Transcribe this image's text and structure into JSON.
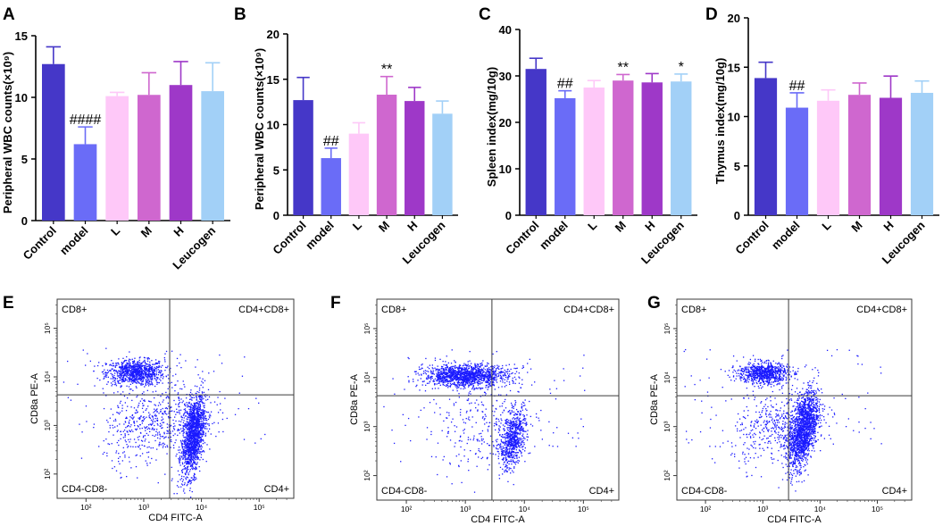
{
  "figure": {
    "colors": {
      "Control": "#4537c8",
      "model": "#6a6cf7",
      "L": "#fec8f8",
      "M": "#cf67cf",
      "H": "#9e38c8",
      "Leucogen": "#a2d0f7",
      "dot": "#1a1aff",
      "axis": "#000000",
      "gate": "#3a3a3a"
    }
  },
  "chart_data": [
    {
      "panel": "A",
      "type": "bar",
      "ylabel": "Peripheral WBC counts(×10⁹)",
      "ylim": [
        0,
        15
      ],
      "yticks": [
        0,
        5,
        10,
        15
      ],
      "categories": [
        "Control",
        "model",
        "L",
        "M",
        "H",
        "Leucogen"
      ],
      "values": [
        12.7,
        6.2,
        10.1,
        10.2,
        11.0,
        10.5
      ],
      "errors": [
        1.4,
        1.4,
        0.3,
        1.8,
        1.9,
        2.3
      ],
      "annotations": [
        "",
        "####",
        "",
        "",
        "",
        ""
      ]
    },
    {
      "panel": "B",
      "type": "bar",
      "ylabel": "Peripheral WBC counts(×10⁹)",
      "ylim": [
        0,
        20
      ],
      "yticks": [
        0,
        5,
        10,
        15,
        20
      ],
      "categories": [
        "Control",
        "model",
        "L",
        "M",
        "H",
        "Leucogen"
      ],
      "values": [
        12.7,
        6.3,
        9.0,
        13.3,
        12.6,
        11.2
      ],
      "errors": [
        2.5,
        1.1,
        1.2,
        2.0,
        1.5,
        1.4
      ],
      "annotations": [
        "",
        "##",
        "",
        "**",
        "",
        ""
      ]
    },
    {
      "panel": "C",
      "type": "bar",
      "ylabel": "Spleen index(mg/10g)",
      "ylim": [
        0,
        40
      ],
      "yticks": [
        0,
        10,
        20,
        30,
        40
      ],
      "categories": [
        "Control",
        "model",
        "L",
        "M",
        "H",
        "Leucogen"
      ],
      "values": [
        31.5,
        25.2,
        27.5,
        29.0,
        28.6,
        28.8
      ],
      "errors": [
        2.3,
        1.6,
        1.5,
        1.3,
        1.9,
        1.6
      ],
      "annotations": [
        "",
        "##",
        "",
        "**",
        "",
        "*"
      ]
    },
    {
      "panel": "D",
      "type": "bar",
      "ylabel": "Thymus index(mg/10g)",
      "ylim": [
        0,
        20
      ],
      "yticks": [
        0,
        5,
        10,
        15,
        20
      ],
      "categories": [
        "Control",
        "model",
        "L",
        "M",
        "H",
        "Leucogen"
      ],
      "values": [
        13.9,
        10.9,
        11.6,
        12.2,
        11.9,
        12.4
      ],
      "errors": [
        1.6,
        1.5,
        1.1,
        1.2,
        2.2,
        1.2
      ],
      "annotations": [
        "",
        "##",
        "",
        "",
        "",
        ""
      ]
    },
    {
      "panel": "E",
      "type": "scatter",
      "xlabel": "CD4 FITC-A",
      "ylabel": "CD8a PE-A",
      "xticks": [
        "10²",
        "10³",
        "10⁴",
        "10⁵"
      ],
      "yticks": [
        "10²",
        "10³",
        "10⁴",
        "10⁵"
      ],
      "quadrants": {
        "ul": "CD8+",
        "ur": "CD4+CD8+",
        "ll": "CD4-CD8-",
        "lr": "CD4+"
      },
      "populations": [
        {
          "x": 2.85,
          "y": 4.1,
          "sx": 0.25,
          "sy": 0.13,
          "n": 900,
          "rho": 0
        },
        {
          "x": 3.85,
          "y": 2.8,
          "sx": 0.1,
          "sy": 0.42,
          "n": 1500,
          "rho": 0.45
        },
        {
          "x": 3.2,
          "y": 3.05,
          "sx": 0.45,
          "sy": 0.42,
          "n": 550,
          "rho": 0.3
        }
      ]
    },
    {
      "panel": "F",
      "type": "scatter",
      "xlabel": "CD4 FITC-A",
      "ylabel": "CD8a PE-A",
      "xticks": [
        "10²",
        "10³",
        "10⁴",
        "10⁵"
      ],
      "yticks": [
        "10²",
        "10³",
        "10⁴",
        "10⁵"
      ],
      "quadrants": {
        "ul": "CD8+",
        "ur": "CD4+CD8+",
        "ll": "CD4-CD8-",
        "lr": "CD4+"
      },
      "populations": [
        {
          "x": 3.0,
          "y": 4.05,
          "sx": 0.35,
          "sy": 0.11,
          "n": 1400,
          "rho": 0
        },
        {
          "x": 3.8,
          "y": 2.75,
          "sx": 0.11,
          "sy": 0.3,
          "n": 700,
          "rho": 0.4
        },
        {
          "x": 3.3,
          "y": 3.0,
          "sx": 0.45,
          "sy": 0.45,
          "n": 250,
          "rho": 0.2
        }
      ]
    },
    {
      "panel": "G",
      "type": "scatter",
      "xlabel": "CD4 FITC-A",
      "ylabel": "CD8a PE-A",
      "xticks": [
        "10²",
        "10³",
        "10⁴",
        "10⁵"
      ],
      "yticks": [
        "10²",
        "10³",
        "10⁴",
        "10⁵"
      ],
      "quadrants": {
        "ul": "CD8+",
        "ur": "CD4+CD8+",
        "ll": "CD4-CD8-",
        "lr": "CD4+"
      },
      "populations": [
        {
          "x": 3.0,
          "y": 4.1,
          "sx": 0.22,
          "sy": 0.11,
          "n": 800,
          "rho": 0
        },
        {
          "x": 3.7,
          "y": 2.95,
          "sx": 0.13,
          "sy": 0.4,
          "n": 1600,
          "rho": 0.5
        },
        {
          "x": 3.25,
          "y": 3.0,
          "sx": 0.4,
          "sy": 0.38,
          "n": 450,
          "rho": 0.3
        }
      ]
    }
  ]
}
